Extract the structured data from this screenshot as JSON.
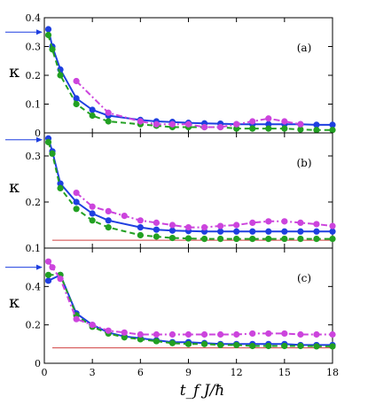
{
  "chart_data": [
    {
      "type": "line",
      "panel_label": "(a)",
      "ylabel": "κ",
      "xlim": [
        0,
        18
      ],
      "ylim": [
        0,
        0.4
      ],
      "yticks": [
        0,
        0.1,
        0.2,
        0.3,
        0.4
      ],
      "ytick_labels": [
        "0",
        "0.1",
        "0.2",
        "0.3",
        "0.4"
      ],
      "arrow_y": 0.35,
      "reference_line": null,
      "series": [
        {
          "color": "#1e3fe0",
          "style": "solid",
          "x": [
            0.25,
            0.5,
            1,
            2,
            3,
            4,
            6,
            7,
            8,
            9,
            10,
            11,
            12,
            13,
            14,
            15,
            16,
            17,
            18
          ],
          "y": [
            0.36,
            0.3,
            0.22,
            0.12,
            0.08,
            0.06,
            0.045,
            0.04,
            0.038,
            0.035,
            0.033,
            0.032,
            0.03,
            0.03,
            0.03,
            0.03,
            0.03,
            0.028,
            0.028
          ]
        },
        {
          "color": "#22a022",
          "style": "dashed",
          "x": [
            0.25,
            0.5,
            1,
            2,
            3,
            4,
            6,
            7,
            8,
            9,
            10,
            11,
            12,
            13,
            14,
            15,
            16,
            17,
            18
          ],
          "y": [
            0.34,
            0.29,
            0.2,
            0.1,
            0.06,
            0.04,
            0.03,
            0.025,
            0.02,
            0.02,
            0.02,
            0.02,
            0.015,
            0.015,
            0.015,
            0.015,
            0.012,
            0.01,
            0.01
          ]
        },
        {
          "color": "#cc44dd",
          "style": "dashdot",
          "x": [
            2,
            4,
            6,
            7,
            8,
            9,
            10,
            11,
            12,
            13,
            14,
            15,
            16
          ],
          "y": [
            0.18,
            0.07,
            0.04,
            0.03,
            0.03,
            0.03,
            0.02,
            0.02,
            0.03,
            0.04,
            0.05,
            0.04,
            0.03
          ]
        }
      ]
    },
    {
      "type": "line",
      "panel_label": "(b)",
      "ylabel": "κ",
      "xlim": [
        0,
        18
      ],
      "ylim": [
        0.1,
        0.35
      ],
      "yticks": [
        0.1,
        0.2,
        0.3
      ],
      "ytick_labels": [
        "0.1",
        "0.2",
        "0.3"
      ],
      "arrow_y": 0.335,
      "reference_line": 0.117,
      "series": [
        {
          "color": "#1e3fe0",
          "style": "solid",
          "x": [
            0.25,
            0.5,
            1,
            2,
            3,
            4,
            6,
            7,
            8,
            9,
            10,
            11,
            12,
            13,
            14,
            15,
            16,
            17,
            18
          ],
          "y": [
            0.338,
            0.31,
            0.24,
            0.2,
            0.175,
            0.16,
            0.145,
            0.14,
            0.138,
            0.137,
            0.136,
            0.136,
            0.136,
            0.136,
            0.136,
            0.136,
            0.136,
            0.136,
            0.136
          ]
        },
        {
          "color": "#22a022",
          "style": "dashed",
          "x": [
            0.25,
            0.5,
            1,
            2,
            3,
            4,
            6,
            7,
            8,
            9,
            10,
            11,
            12,
            13,
            14,
            15,
            16,
            17,
            18
          ],
          "y": [
            0.33,
            0.305,
            0.23,
            0.185,
            0.16,
            0.145,
            0.128,
            0.125,
            0.122,
            0.121,
            0.12,
            0.12,
            0.12,
            0.12,
            0.12,
            0.12,
            0.12,
            0.12,
            0.12
          ]
        },
        {
          "color": "#cc44dd",
          "style": "dashdot",
          "x": [
            2,
            3,
            4,
            5,
            6,
            7,
            8,
            9,
            10,
            11,
            12,
            13,
            14,
            15,
            16,
            17,
            18
          ],
          "y": [
            0.22,
            0.19,
            0.18,
            0.17,
            0.16,
            0.155,
            0.15,
            0.145,
            0.145,
            0.148,
            0.15,
            0.155,
            0.158,
            0.158,
            0.155,
            0.152,
            0.148
          ]
        }
      ]
    },
    {
      "type": "line",
      "panel_label": "(c)",
      "ylabel": "κ",
      "xlim": [
        0,
        18
      ],
      "ylim": [
        0,
        0.6
      ],
      "yticks": [
        0,
        0.2,
        0.4
      ],
      "ytick_labels": [
        "0",
        "0.2",
        "0.4"
      ],
      "arrow_y": 0.5,
      "reference_line": 0.08,
      "series": [
        {
          "color": "#1e3fe0",
          "style": "solid",
          "x": [
            0.25,
            1,
            2,
            3,
            4,
            5,
            6,
            7,
            8,
            9,
            10,
            11,
            12,
            13,
            14,
            15,
            16,
            17,
            18
          ],
          "y": [
            0.43,
            0.46,
            0.26,
            0.2,
            0.16,
            0.14,
            0.13,
            0.12,
            0.11,
            0.11,
            0.105,
            0.1,
            0.1,
            0.1,
            0.1,
            0.1,
            0.095,
            0.095,
            0.095
          ]
        },
        {
          "color": "#22a022",
          "style": "dashed",
          "x": [
            0.25,
            1,
            2,
            3,
            4,
            5,
            6,
            7,
            8,
            9,
            10,
            11,
            12,
            13,
            14,
            15,
            16,
            17,
            18
          ],
          "y": [
            0.46,
            0.46,
            0.25,
            0.19,
            0.155,
            0.135,
            0.125,
            0.115,
            0.105,
            0.1,
            0.1,
            0.095,
            0.095,
            0.09,
            0.09,
            0.09,
            0.09,
            0.088,
            0.088
          ]
        },
        {
          "color": "#cc44dd",
          "style": "dashdot",
          "x": [
            0.25,
            0.5,
            1,
            2,
            3,
            4,
            5,
            6,
            7,
            8,
            9,
            10,
            11,
            12,
            13,
            14,
            15,
            16,
            17,
            18
          ],
          "y": [
            0.53,
            0.5,
            0.44,
            0.23,
            0.2,
            0.17,
            0.16,
            0.15,
            0.15,
            0.15,
            0.15,
            0.15,
            0.15,
            0.15,
            0.155,
            0.155,
            0.155,
            0.15,
            0.15,
            0.15
          ]
        }
      ]
    }
  ],
  "shared_axis": {
    "xticks": [
      0,
      3,
      6,
      9,
      12,
      15,
      18
    ],
    "xtick_labels": [
      "0",
      "3",
      "6",
      "9",
      "12",
      "15",
      "18"
    ],
    "xlabel": "t_f J/ħ"
  },
  "colors": {
    "blue": "#1e3fe0",
    "green": "#22a022",
    "magenta": "#cc44dd",
    "reference": "#d04040"
  }
}
